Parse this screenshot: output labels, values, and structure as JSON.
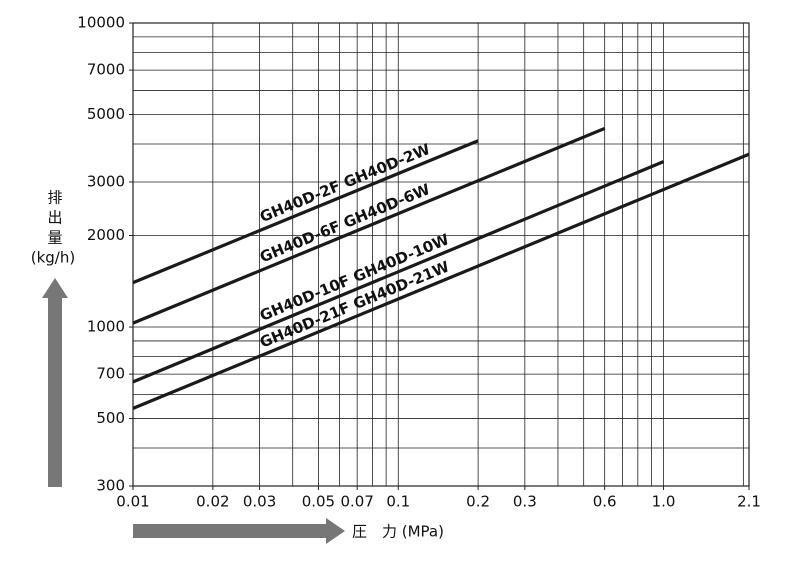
{
  "chart_data": {
    "type": "line",
    "y_label_1": "排",
    "y_label_2": "出",
    "y_label_3": "量",
    "y_label_unit": "(kg/h)",
    "x_label": "圧　力 (MPa)",
    "xscale": "log",
    "yscale": "log",
    "grid": true,
    "xlim": [
      0.01,
      2.1
    ],
    "ylim": [
      300,
      10000
    ],
    "xticks": [
      0.01,
      0.02,
      0.03,
      0.05,
      0.07,
      0.1,
      0.2,
      0.3,
      0.6,
      {
        "value": 1,
        "label": "1.0"
      },
      2.1
    ],
    "yticks": [
      300,
      500,
      700,
      1000,
      2000,
      3000,
      5000,
      7000,
      10000
    ],
    "xgrid": [
      0.01,
      0.02,
      0.03,
      0.04,
      0.05,
      0.06,
      0.07,
      0.08,
      0.09,
      0.1,
      0.2,
      0.3,
      0.4,
      0.5,
      0.6,
      0.7,
      0.8,
      0.9,
      1,
      2,
      2.1
    ],
    "ygrid": [
      300,
      400,
      500,
      600,
      700,
      800,
      900,
      1000,
      2000,
      3000,
      4000,
      5000,
      6000,
      7000,
      8000,
      9000,
      10000
    ],
    "series": [
      {
        "name": "GH40D-2F  GH40D-2W",
        "color": "#1a1a1a",
        "x": [
          0.01,
          0.2
        ],
        "values": [
          1400,
          4100
        ]
      },
      {
        "name": "GH40D-6F  GH40D-6W",
        "color": "#1a1a1a",
        "x": [
          0.01,
          0.6
        ],
        "values": [
          1030,
          4500
        ]
      },
      {
        "name": "GH40D-10F  GH40D-10W",
        "color": "#1a1a1a",
        "x": [
          0.01,
          1
        ],
        "values": [
          660,
          3500
        ]
      },
      {
        "name": "GH40D-21F  GH40D-21W",
        "color": "#1a1a1a",
        "x": [
          0.01,
          2.1
        ],
        "values": [
          540,
          3700
        ]
      }
    ]
  }
}
